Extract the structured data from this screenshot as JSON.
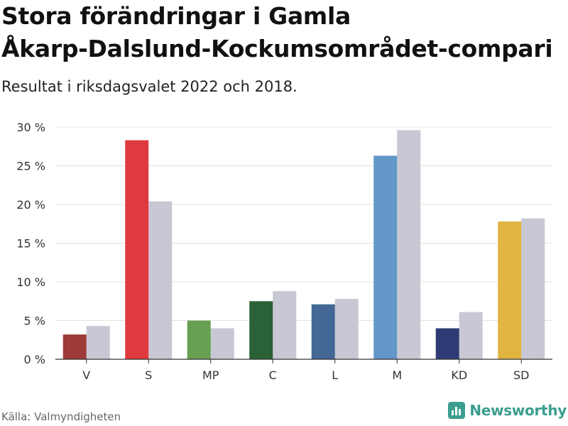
{
  "title_lines": [
    "Stora förändringar i Gamla",
    "Åkarp-Dalslund-Kockumsområdet-compari"
  ],
  "subtitle": "Resultat i riksdagsvalet 2022 och 2018.",
  "source": "Källa: Valmyndigheten",
  "brand": "Newsworthy",
  "colors": {
    "previous": "#c8c8d4",
    "grid": "#e3e3e3",
    "axis": "#333333",
    "brand": "#3b9d8e"
  },
  "chart_data": {
    "type": "bar",
    "title": "Stora förändringar i Gamla Åkarp-Dalslund-Kockumsområdet-compari",
    "subtitle": "Resultat i riksdagsvalet 2022 och 2018.",
    "xlabel": "",
    "ylabel": "",
    "ylim": [
      0,
      30
    ],
    "yticks": [
      0,
      5,
      10,
      15,
      20,
      25,
      30
    ],
    "ytick_labels": [
      "0 %",
      "5 %",
      "10 %",
      "15 %",
      "20 %",
      "25 %",
      "30 %"
    ],
    "grid": true,
    "categories": [
      "V",
      "S",
      "MP",
      "C",
      "L",
      "M",
      "KD",
      "SD"
    ],
    "party_colors": [
      "#9e3a37",
      "#de3a3f",
      "#66a050",
      "#2a6137",
      "#436896",
      "#6397c8",
      "#2e3b74",
      "#e0b540"
    ],
    "series": [
      {
        "name": "2022",
        "values": [
          3.2,
          28.3,
          5.0,
          7.5,
          7.1,
          26.3,
          4.0,
          17.8
        ]
      },
      {
        "name": "2018",
        "values": [
          4.3,
          20.4,
          4.0,
          8.8,
          7.8,
          29.6,
          6.1,
          18.2
        ]
      }
    ]
  }
}
